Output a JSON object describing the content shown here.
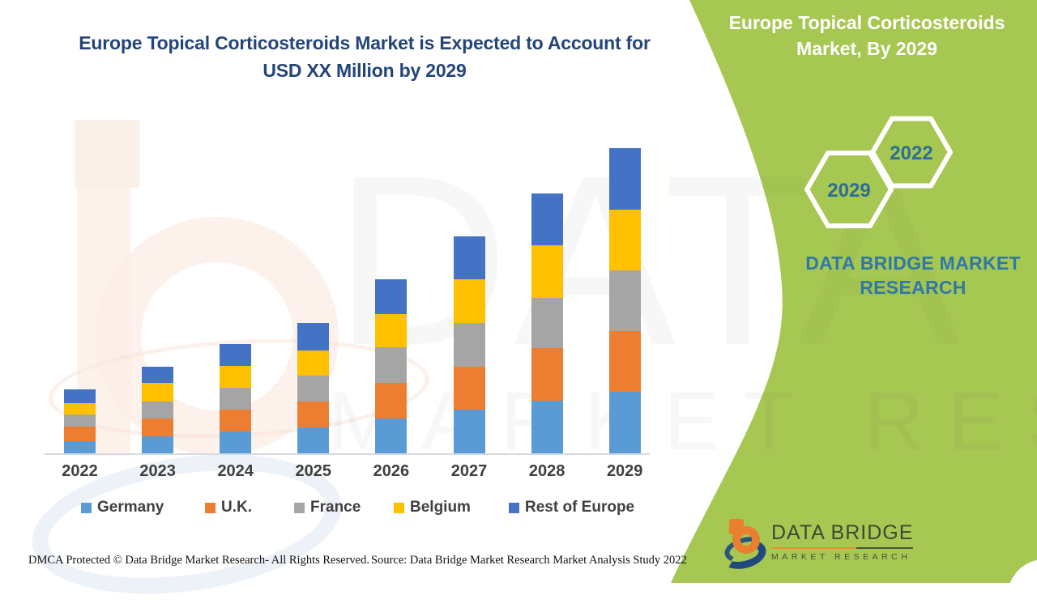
{
  "title": {
    "line1": "Europe Topical Corticosteroids Market is Expected to Account for",
    "line2": "USD XX Million by 2029"
  },
  "chart_data": {
    "type": "bar",
    "stacked": true,
    "title": "Europe Topical Corticosteroids Market is Expected to Account for USD XX Million by 2029",
    "categories": [
      "2022",
      "2023",
      "2024",
      "2025",
      "2026",
      "2027",
      "2028",
      "2029"
    ],
    "series": [
      {
        "name": "Germany",
        "color": "#5B9BD5",
        "values": [
          15,
          21,
          27,
          32,
          43,
          54,
          65,
          76
        ]
      },
      {
        "name": "U.K.",
        "color": "#ED7D31",
        "values": [
          18,
          22,
          27,
          32,
          44,
          53,
          65,
          75
        ]
      },
      {
        "name": "France",
        "color": "#A5A5A5",
        "values": [
          15,
          21,
          27,
          32,
          44,
          54,
          62,
          75
        ]
      },
      {
        "name": "Belgium",
        "color": "#FFC000",
        "values": [
          14,
          23,
          27,
          31,
          41,
          54,
          65,
          75
        ]
      },
      {
        "name": "Rest of Europe",
        "color": "#4472C4",
        "values": [
          17,
          20,
          27,
          34,
          43,
          53,
          64,
          76
        ]
      }
    ],
    "totals": [
      79,
      107,
      135,
      161,
      215,
      268,
      321,
      377
    ],
    "xlabel": "",
    "ylabel": "",
    "y_axis_visible": false,
    "grid": false,
    "legend_position": "bottom",
    "values_note": "Relative units read from bar heights; actual figures shown as 'USD XX Million'"
  },
  "side_panel": {
    "heading_line1": "Europe Topical Corticosteroids",
    "heading_line2": "Market, By 2029",
    "hexagons": [
      {
        "label": "2029"
      },
      {
        "label": "2022"
      }
    ],
    "brand_line1": "DATA BRIDGE MARKET",
    "brand_line2": "RESEARCH",
    "colors": {
      "background": "#a6c751",
      "heading_text": "#ffffff",
      "accent_text": "#2d6e95"
    }
  },
  "watermark": {
    "row1": "DATA BRIDGE",
    "row2": "MARKET RESEARCH"
  },
  "footer": {
    "dmca": "DMCA Protected © Data Bridge Market Research- All Rights Reserved.",
    "source": "Source: Data Bridge Market Research Market Analysis Study 2022"
  },
  "logo": {
    "line1": "DATA BRIDGE",
    "line2": "MARKET RESEARCH"
  }
}
